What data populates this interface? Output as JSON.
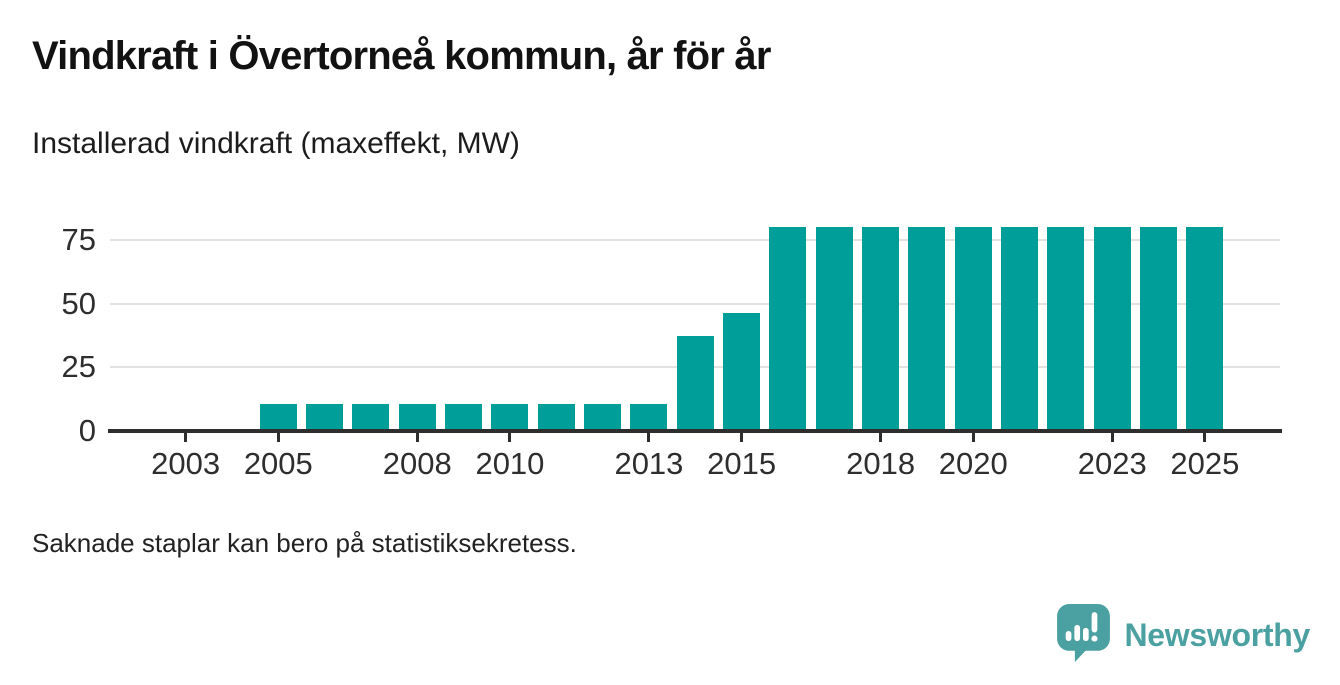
{
  "header": {
    "title": "Vindkraft i Övertorneå kommun, år för år",
    "subtitle": "Installerad vindkraft (maxeffekt, MW)"
  },
  "footer": {
    "note": "Saknade staplar kan bero på statistiksekretess."
  },
  "branding": {
    "name": "Newsworthy",
    "logo_icon": "speech-bubble-bar-chart-exclamation-icon",
    "brand_color": "#4ba1a1"
  },
  "colors": {
    "bar": "#009e98",
    "axis": "#2e2e2e",
    "gridline": "#e2e2e2",
    "title_text": "#121212",
    "tick_text": "#2e2e2e"
  },
  "chart_data": {
    "type": "bar",
    "title": "Vindkraft i Övertorneå kommun, år för år",
    "subtitle": "Installerad vindkraft (maxeffekt, MW)",
    "unit": "MW",
    "xlabel": "",
    "ylabel": "Installerad vindkraft (maxeffekt, MW)",
    "categories": [
      2002,
      2003,
      2004,
      2005,
      2006,
      2007,
      2008,
      2009,
      2010,
      2011,
      2012,
      2013,
      2014,
      2015,
      2016,
      2017,
      2018,
      2019,
      2020,
      2021,
      2022,
      2023,
      2024,
      2025
    ],
    "values": [
      null,
      null,
      null,
      10.5,
      10.5,
      10.5,
      10.5,
      10.5,
      10.5,
      10.5,
      10.5,
      10.5,
      37.5,
      46.5,
      80,
      80,
      80,
      80,
      80,
      80,
      80,
      80,
      80,
      80
    ],
    "missing_values_note": "Saknade staplar kan bero på statistiksekretess.",
    "y_ticks": [
      0,
      25,
      50,
      75
    ],
    "x_ticks": [
      2003,
      2005,
      2008,
      2010,
      2013,
      2015,
      2018,
      2020,
      2023,
      2025
    ],
    "ylim": [
      0,
      86
    ],
    "xlim": [
      2001.4,
      2026.6
    ],
    "grid": "horizontal",
    "legend": "none",
    "bar_color": "#009e98"
  }
}
